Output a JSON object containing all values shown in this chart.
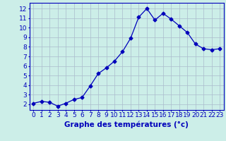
{
  "x": [
    0,
    1,
    2,
    3,
    4,
    5,
    6,
    7,
    8,
    9,
    10,
    11,
    12,
    13,
    14,
    15,
    16,
    17,
    18,
    19,
    20,
    21,
    22,
    23
  ],
  "y": [
    2.1,
    2.3,
    2.2,
    1.8,
    2.1,
    2.5,
    2.7,
    3.9,
    5.2,
    5.8,
    6.5,
    7.5,
    8.9,
    11.1,
    12.0,
    10.8,
    11.5,
    10.9,
    10.2,
    9.5,
    8.3,
    7.8,
    7.7,
    7.8
  ],
  "line_color": "#0000bb",
  "marker": "D",
  "marker_size": 2.5,
  "bg_color": "#cceee8",
  "grid_color": "#aabbcc",
  "xlabel": "Graphe des températures (°c)",
  "xlabel_fontsize": 7.5,
  "ylabel_ticks": [
    2,
    3,
    4,
    5,
    6,
    7,
    8,
    9,
    10,
    11,
    12
  ],
  "xlim": [
    -0.5,
    23.5
  ],
  "ylim": [
    1.4,
    12.6
  ],
  "tick_fontsize": 6.5,
  "axis_color": "#0000bb",
  "xticks": [
    0,
    1,
    2,
    3,
    4,
    5,
    6,
    7,
    8,
    9,
    10,
    11,
    12,
    13,
    14,
    15,
    16,
    17,
    18,
    19,
    20,
    21,
    22,
    23
  ]
}
